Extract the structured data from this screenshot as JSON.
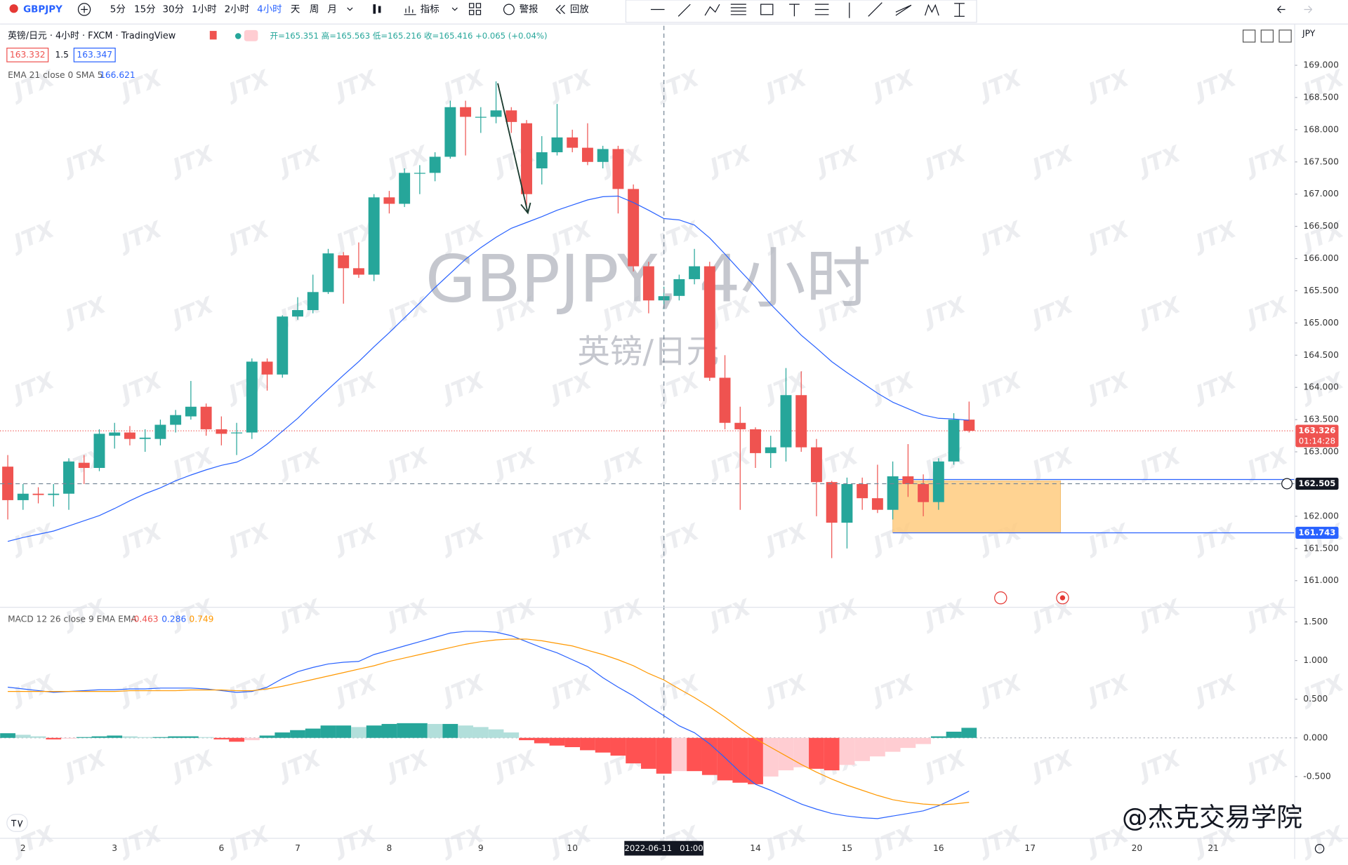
{
  "toolbar": {
    "symbol": "GBPJPY",
    "intervals": [
      "5分",
      "15分",
      "30分",
      "1小时",
      "2小时",
      "4小时",
      "天",
      "周",
      "月"
    ],
    "indicators": "指标",
    "alert": "警报",
    "replay": "回放"
  },
  "legend": {
    "title": "英镑/日元 · 4小时 · FXCM · TradingView",
    "ohlc": "开=165.351 高=165.563 低=165.216 收=165.416 +0.065 (+0.04%)",
    "bid": "163.332",
    "spread": "1.5",
    "ask": "163.347",
    "ema_label": "EMA 21 close 0 SMA 5",
    "macd_label": "MACD 12 26 close 9 EMA EMA",
    "currency": "JPY"
  },
  "watermarks": {
    "symbol": "GBPJPY, 4小时",
    "name": "英镑/日元",
    "brand": "JTX",
    "credit": "@杰克交易学院"
  },
  "chart_data": [
    {
      "type": "candlestick",
      "up_color": "#26a69a",
      "down_color": "#ef5350",
      "grid": false,
      "categories": [
        null,
        "2",
        null,
        null,
        null,
        null,
        null,
        "3",
        null,
        null,
        null,
        null,
        null,
        null,
        "6",
        null,
        null,
        null,
        null,
        "7",
        null,
        null,
        null,
        null,
        null,
        "8",
        null,
        null,
        null,
        null,
        null,
        "9",
        null,
        null,
        null,
        null,
        null,
        "10",
        null,
        null,
        null,
        null,
        null,
        null,
        null,
        null,
        null,
        null,
        null,
        "14",
        null,
        null,
        null,
        null,
        null,
        "15",
        null,
        null,
        null,
        null,
        null,
        "16",
        null,
        null,
        null,
        null,
        null,
        "17",
        null,
        null,
        null,
        null,
        null,
        null,
        "20",
        null,
        null,
        null,
        null,
        "21"
      ],
      "candles": {
        "open": [
          162.77,
          162.25,
          162.35,
          162.33,
          162.35,
          162.83,
          162.75,
          163.25,
          163.3,
          163.2,
          163.2,
          163.42,
          163.55,
          163.7,
          163.35,
          163.3,
          163.3,
          164.4,
          164.2,
          165.1,
          165.2,
          165.48,
          166.05,
          165.85,
          165.75,
          166.95,
          166.85,
          167.33,
          167.33,
          167.58,
          168.35,
          168.2,
          168.2,
          168.3,
          168.1,
          167.4,
          167.65,
          167.88,
          167.72,
          167.5,
          167.7,
          167.08,
          165.88,
          165.351,
          165.42,
          165.68,
          165.88,
          164.15,
          163.45,
          163.35,
          162.98,
          163.07,
          163.88,
          163.07,
          162.53,
          161.9,
          162.5,
          162.28,
          162.1,
          162.62,
          162.5,
          162.22,
          162.85,
          163.5,
          null,
          null,
          null,
          null,
          null,
          null,
          null,
          null,
          null,
          null,
          null,
          null,
          null,
          null,
          null,
          null
        ],
        "high": [
          162.95,
          162.5,
          162.45,
          162.5,
          162.9,
          162.95,
          163.35,
          163.45,
          163.4,
          163.35,
          163.5,
          163.65,
          164.1,
          163.75,
          163.55,
          163.45,
          164.45,
          164.45,
          165.12,
          165.4,
          165.75,
          166.15,
          166.1,
          166.25,
          167.0,
          167.05,
          167.4,
          167.45,
          167.65,
          168.45,
          168.45,
          168.35,
          168.75,
          168.35,
          168.15,
          167.9,
          168.4,
          168.0,
          168.1,
          167.75,
          167.75,
          167.15,
          165.95,
          165.563,
          165.75,
          166.15,
          165.95,
          164.5,
          163.7,
          163.38,
          163.25,
          164.3,
          164.25,
          163.2,
          162.55,
          162.6,
          162.6,
          162.8,
          162.85,
          163.12,
          162.65,
          162.9,
          163.6,
          163.78,
          null,
          null,
          null,
          null,
          null,
          null,
          null,
          null,
          null,
          null,
          null,
          null,
          null,
          null,
          null,
          null
        ],
        "low": [
          161.95,
          162.1,
          162.2,
          162.15,
          162.1,
          162.5,
          162.7,
          163.05,
          163.1,
          163.0,
          163.1,
          163.3,
          163.5,
          163.25,
          163.1,
          162.95,
          163.2,
          163.95,
          164.15,
          165.05,
          165.15,
          165.45,
          165.3,
          165.7,
          165.65,
          166.7,
          166.8,
          167.0,
          167.2,
          167.55,
          167.6,
          167.95,
          168.1,
          167.95,
          166.8,
          167.15,
          167.6,
          167.65,
          167.45,
          167.4,
          166.7,
          165.8,
          165.15,
          165.216,
          165.35,
          165.6,
          164.1,
          163.35,
          162.1,
          162.75,
          162.75,
          162.85,
          163.0,
          162.0,
          161.35,
          161.5,
          162.1,
          162.05,
          161.95,
          162.3,
          162.0,
          162.1,
          162.8,
          163.3,
          null,
          null,
          null,
          null,
          null,
          null,
          null,
          null,
          null,
          null,
          null,
          null,
          null,
          null,
          null,
          null
        ],
        "close": [
          162.25,
          162.35,
          162.33,
          162.35,
          162.85,
          162.75,
          163.28,
          163.3,
          163.2,
          163.22,
          163.42,
          163.57,
          163.7,
          163.35,
          163.28,
          163.3,
          164.4,
          164.2,
          165.1,
          165.2,
          165.48,
          166.08,
          165.85,
          165.75,
          166.95,
          166.85,
          167.33,
          167.33,
          167.58,
          168.35,
          168.2,
          168.2,
          168.3,
          168.12,
          167.0,
          167.65,
          167.88,
          167.72,
          167.5,
          167.7,
          167.08,
          165.88,
          165.35,
          165.416,
          165.68,
          165.88,
          164.15,
          163.45,
          163.35,
          162.98,
          163.07,
          163.88,
          163.07,
          162.53,
          161.9,
          162.5,
          162.28,
          162.1,
          162.62,
          162.5,
          162.22,
          162.85,
          163.5,
          163.326,
          null,
          null,
          null,
          null,
          null,
          null,
          null,
          null,
          null,
          null,
          null,
          null,
          null,
          null,
          null,
          null
        ]
      },
      "ema": {
        "color": "#2962ff",
        "values": [
          161.61,
          161.67,
          161.72,
          161.77,
          161.85,
          161.93,
          162.01,
          162.12,
          162.24,
          162.35,
          162.44,
          162.55,
          162.64,
          162.72,
          162.79,
          162.84,
          162.95,
          163.12,
          163.32,
          163.52,
          163.75,
          163.97,
          164.19,
          164.4,
          164.63,
          164.85,
          165.08,
          165.31,
          165.55,
          165.77,
          165.99,
          166.17,
          166.33,
          166.47,
          166.56,
          166.65,
          166.75,
          166.83,
          166.91,
          166.96,
          166.97,
          166.87,
          166.75,
          166.621,
          166.6,
          166.52,
          166.32,
          166.07,
          165.81,
          165.56,
          165.29,
          165.05,
          164.81,
          164.61,
          164.4,
          164.23,
          164.07,
          163.91,
          163.77,
          163.67,
          163.57,
          163.52,
          163.51,
          163.49,
          null,
          null,
          null,
          null,
          null,
          null,
          null,
          null,
          null,
          null,
          null,
          null,
          null,
          null,
          null,
          null
        ]
      },
      "ylim": [
        160.6,
        169.6
      ],
      "yticks": [
        {
          "value": 161,
          "label": "161.000"
        },
        {
          "value": 161.5,
          "label": "161.500"
        },
        {
          "value": 162,
          "label": "162.000"
        },
        {
          "value": 163,
          "label": "163.000"
        },
        {
          "value": 163.5,
          "label": "163.500"
        },
        {
          "value": 164,
          "label": "164.000"
        },
        {
          "value": 164.5,
          "label": "164.500"
        },
        {
          "value": 165,
          "label": "165.000"
        },
        {
          "value": 165.5,
          "label": "165.500"
        },
        {
          "value": 166,
          "label": "166.000"
        },
        {
          "value": 166.5,
          "label": "166.500"
        },
        {
          "value": 167,
          "label": "167.000"
        },
        {
          "value": 167.5,
          "label": "167.500"
        },
        {
          "value": 168,
          "label": "168.000"
        },
        {
          "value": 168.5,
          "label": "168.500"
        },
        {
          "value": 169,
          "label": "169.000"
        }
      ],
      "last_price": {
        "value": 163.326,
        "countdown": "01:14:28",
        "color": "#ef5350"
      },
      "crosshair": {
        "index": 43,
        "value": 162.505,
        "date": "2022-06-11   01:00"
      },
      "hlines": [
        {
          "value": 162.57,
          "color": "#2962ff"
        },
        {
          "value": 161.743,
          "color": "#2962ff",
          "tag": true
        }
      ],
      "zone": {
        "top": 162.55,
        "bottom": 161.743,
        "start": 58,
        "end": 69,
        "color": "#ffcc80"
      }
    },
    {
      "type": "macd",
      "histogram": {
        "colors": {
          "grow_above": "#26a69a",
          "fall_above": "#b2dfdb",
          "grow_below": "#ffcdd2",
          "fall_below": "#ff5252"
        },
        "values": [
          0.06,
          0.04,
          0.02,
          -0.02,
          -0.01,
          0.01,
          0.02,
          0.03,
          0.02,
          0.01,
          0.01,
          0.02,
          0.02,
          0.01,
          -0.02,
          -0.05,
          -0.03,
          0.03,
          0.07,
          0.1,
          0.12,
          0.16,
          0.16,
          0.14,
          0.16,
          0.18,
          0.19,
          0.19,
          0.18,
          0.18,
          0.16,
          0.14,
          0.11,
          0.07,
          -0.03,
          -0.07,
          -0.1,
          -0.12,
          -0.16,
          -0.19,
          -0.23,
          -0.33,
          -0.4,
          -0.463,
          -0.43,
          -0.43,
          -0.48,
          -0.55,
          -0.58,
          -0.6,
          -0.5,
          -0.42,
          -0.38,
          -0.4,
          -0.42,
          -0.35,
          -0.3,
          -0.24,
          -0.18,
          -0.13,
          -0.08,
          0.02,
          0.08,
          0.13,
          null,
          null,
          null,
          null,
          null,
          null,
          null,
          null,
          null,
          null,
          null,
          null,
          null,
          null,
          null,
          null
        ]
      },
      "macd": {
        "color": "#2962ff",
        "values": [
          0.656,
          0.633,
          0.611,
          0.589,
          0.6,
          0.611,
          0.622,
          0.622,
          0.633,
          0.633,
          0.644,
          0.644,
          0.644,
          0.633,
          0.611,
          0.589,
          0.6,
          0.656,
          0.767,
          0.856,
          0.911,
          0.956,
          0.978,
          0.989,
          1.078,
          1.133,
          1.189,
          1.244,
          1.3,
          1.356,
          1.378,
          1.378,
          1.367,
          1.322,
          1.244,
          1.167,
          1.1,
          1.011,
          0.922,
          0.778,
          0.656,
          0.544,
          0.411,
          0.286,
          0.156,
          0.067,
          -0.078,
          -0.256,
          -0.444,
          -0.6,
          -0.678,
          -0.767,
          -0.856,
          -0.922,
          -0.978,
          -1.011,
          -1.033,
          -1.044,
          -1.011,
          -0.978,
          -0.944,
          -0.878,
          -0.789,
          -0.689,
          null,
          null,
          null,
          null,
          null,
          null,
          null,
          null,
          null,
          null,
          null,
          null,
          null,
          null,
          null,
          null
        ]
      },
      "signal": {
        "color": "#ff9800",
        "values": [
          0.6,
          0.6,
          0.6,
          0.6,
          0.6,
          0.6,
          0.6,
          0.6,
          0.61,
          0.61,
          0.61,
          0.61,
          0.62,
          0.62,
          0.62,
          0.61,
          0.61,
          0.633,
          0.667,
          0.711,
          0.756,
          0.8,
          0.844,
          0.889,
          0.933,
          0.989,
          1.033,
          1.078,
          1.122,
          1.167,
          1.211,
          1.244,
          1.267,
          1.278,
          1.278,
          1.256,
          1.222,
          1.189,
          1.133,
          1.078,
          1.011,
          0.933,
          0.833,
          0.749,
          0.633,
          0.522,
          0.4,
          0.267,
          0.122,
          -0.011,
          -0.122,
          -0.233,
          -0.344,
          -0.444,
          -0.533,
          -0.611,
          -0.678,
          -0.744,
          -0.8,
          -0.833,
          -0.856,
          -0.867,
          -0.856,
          -0.833,
          null,
          null,
          null,
          null,
          null,
          null,
          null,
          null,
          null,
          null,
          null,
          null,
          null,
          null,
          null,
          null
        ]
      },
      "ylim": [
        -1.28,
        1.67
      ],
      "yticks": [
        {
          "value": -0.5,
          "label": "-0.500"
        },
        {
          "value": 0,
          "label": "0.000"
        },
        {
          "value": 0.5,
          "label": "0.500"
        },
        {
          "value": 1,
          "label": "1.000"
        },
        {
          "value": 1.5,
          "label": "1.500"
        }
      ]
    }
  ]
}
